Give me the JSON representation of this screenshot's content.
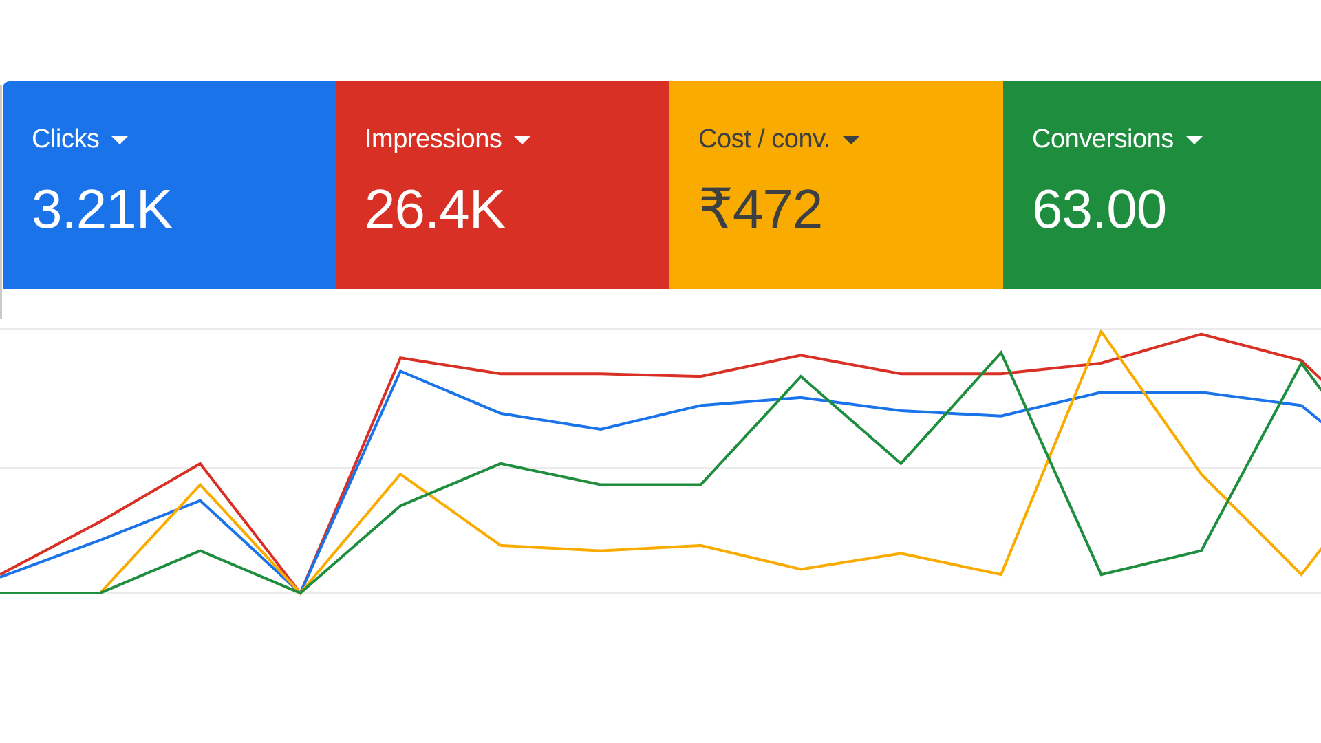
{
  "metrics": [
    {
      "label": "Clicks",
      "value": "3.21K",
      "color": "#1a73e8",
      "text_color": "#ffffff",
      "icon": "caret-down-icon"
    },
    {
      "label": "Impressions",
      "value": "26.4K",
      "color": "#d93025",
      "text_color": "#ffffff",
      "icon": "caret-down-icon"
    },
    {
      "label": "Cost / conv.",
      "value": "₹472",
      "color": "#f9ab00",
      "text_color": "#3c4043",
      "icon": "caret-down-icon"
    },
    {
      "label": "Conversions",
      "value": "63.00",
      "color": "#1e8e3e",
      "text_color": "#ffffff",
      "icon": "caret-down-icon"
    }
  ],
  "chart_data": {
    "type": "line",
    "grid": true,
    "x": [
      0,
      1,
      2,
      3,
      4,
      5,
      6,
      7,
      8,
      9,
      10,
      11,
      12,
      13,
      14
    ],
    "ylim": [
      0,
      100
    ],
    "series": [
      {
        "color": "#d93025",
        "values": [
          7,
          27,
          49,
          0,
          89,
          83,
          83,
          82,
          90,
          83,
          83,
          87,
          98,
          88,
          52
        ]
      },
      {
        "color": "#1a73e8",
        "values": [
          6,
          20,
          35,
          0,
          84,
          68,
          62,
          71,
          74,
          69,
          67,
          76,
          76,
          71,
          40
        ]
      },
      {
        "color": "#f9ab00",
        "values": [
          0,
          0,
          41,
          0,
          45,
          18,
          16,
          18,
          9,
          15,
          7,
          99,
          45,
          7,
          56
        ]
      },
      {
        "color": "#1e8e3e",
        "values": [
          0,
          0,
          16,
          0,
          33,
          49,
          41,
          41,
          82,
          49,
          91,
          7,
          16,
          87,
          36
        ]
      }
    ]
  }
}
